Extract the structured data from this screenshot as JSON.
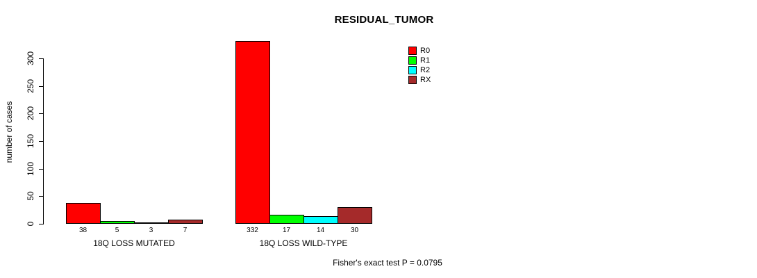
{
  "chart_data": {
    "type": "bar",
    "title": "RESIDUAL_TUMOR",
    "xlabel": "",
    "ylabel": "number of cases",
    "categories": [
      "18Q LOSS MUTATED",
      "18Q LOSS WILD-TYPE"
    ],
    "series": [
      {
        "name": "R0",
        "color": "#FF0000",
        "values": [
          38,
          332
        ]
      },
      {
        "name": "R1",
        "color": "#00FF00",
        "values": [
          5,
          17
        ]
      },
      {
        "name": "R2",
        "color": "#00FFFF",
        "values": [
          3,
          14
        ]
      },
      {
        "name": "RX",
        "color": "#A52A2A",
        "values": [
          7,
          30
        ]
      }
    ],
    "yticks": [
      0,
      50,
      100,
      150,
      200,
      250,
      300
    ],
    "ylim": [
      0,
      332
    ],
    "grid": false,
    "legend_position": "right",
    "annotation": "Fisher's exact test P = 0.0795"
  }
}
